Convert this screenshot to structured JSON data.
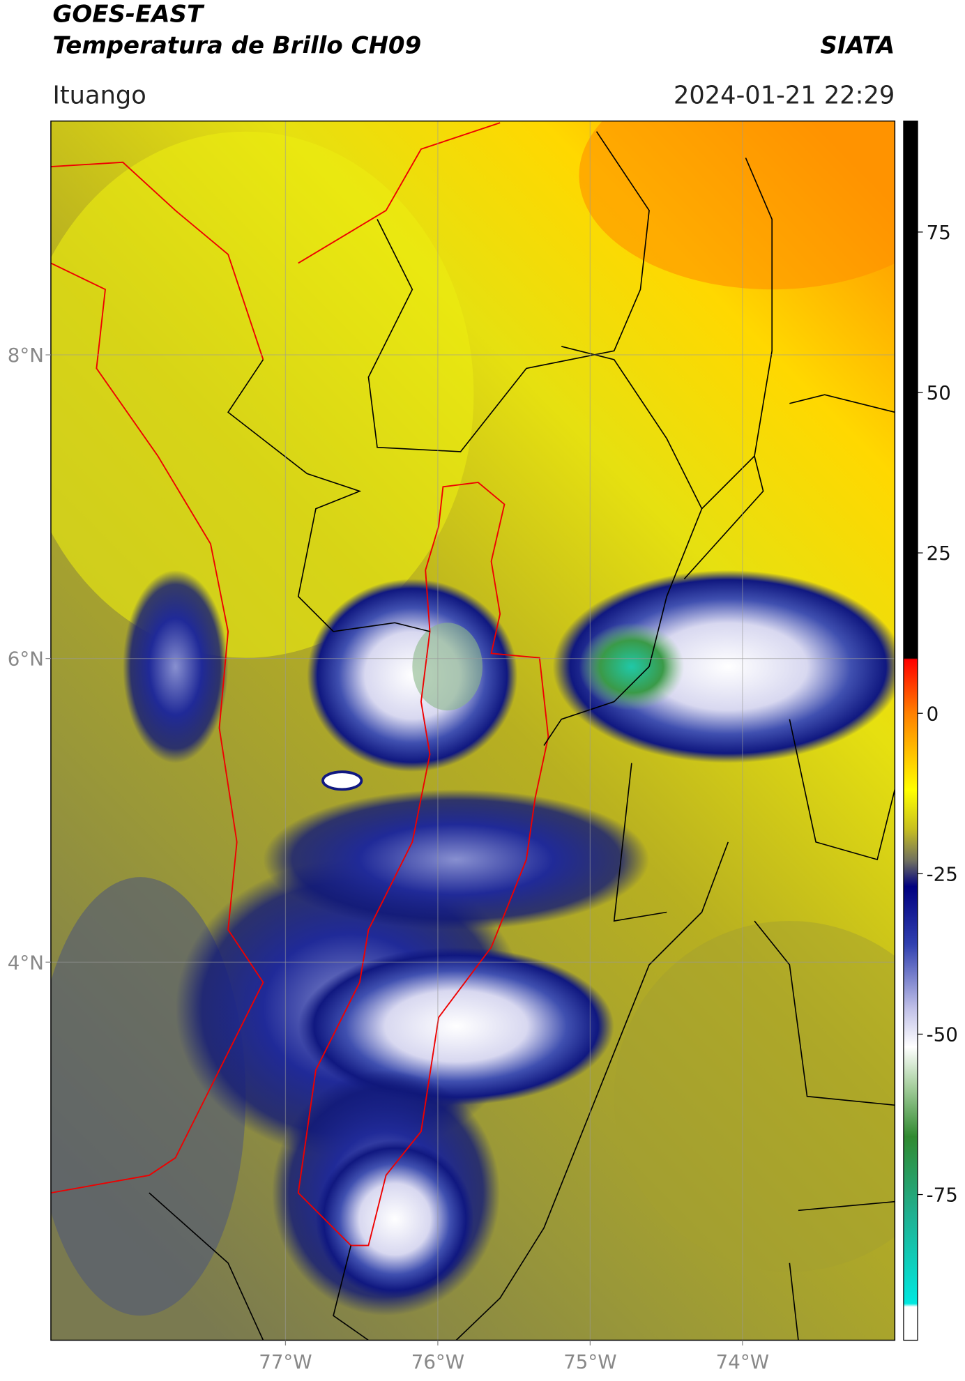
{
  "header": {
    "title": "GOES-EAST",
    "subtitle": "Temperatura de Brillo CH09",
    "source": "SIATA",
    "location": "Ituango",
    "datetime": "2024-01-21 22:29"
  },
  "map": {
    "xlim": [
      -78.54,
      -73.0
    ],
    "ylim": [
      1.51,
      9.54
    ],
    "xticks": [
      {
        "value": -77,
        "label": "77°W"
      },
      {
        "value": -76,
        "label": "76°W"
      },
      {
        "value": -75,
        "label": "75°W"
      },
      {
        "value": -74,
        "label": "74°W"
      }
    ],
    "yticks": [
      {
        "value": 8,
        "label": "8°N"
      },
      {
        "value": 6,
        "label": "6°N"
      },
      {
        "value": 4,
        "label": "4°N"
      }
    ],
    "grid": true
  },
  "colorbar": {
    "ylim": [
      -97.7,
      92.3
    ],
    "yticks": [
      75,
      50,
      25,
      0,
      -25,
      -50,
      -75
    ],
    "colormap": [
      {
        "value": 92.3,
        "color": "#000000"
      },
      {
        "value": 8.6,
        "color": "#000000"
      },
      {
        "value": 8.4,
        "color": "#ff0000"
      },
      {
        "value": 0,
        "color": "#ff8000"
      },
      {
        "value": -12,
        "color": "#ffff00"
      },
      {
        "value": -18,
        "color": "#c8c020"
      },
      {
        "value": -23,
        "color": "#707060"
      },
      {
        "value": -27,
        "color": "#000080"
      },
      {
        "value": -36,
        "color": "#3040b0"
      },
      {
        "value": -46,
        "color": "#c0c0e8"
      },
      {
        "value": -52,
        "color": "#ffffff"
      },
      {
        "value": -58,
        "color": "#a8d0a0"
      },
      {
        "value": -66,
        "color": "#308a30"
      },
      {
        "value": -78,
        "color": "#20b090"
      },
      {
        "value": -92,
        "color": "#00e8e0"
      },
      {
        "value": -92.5,
        "color": "#ffffff"
      },
      {
        "value": -97.7,
        "color": "#ffffff"
      }
    ]
  }
}
